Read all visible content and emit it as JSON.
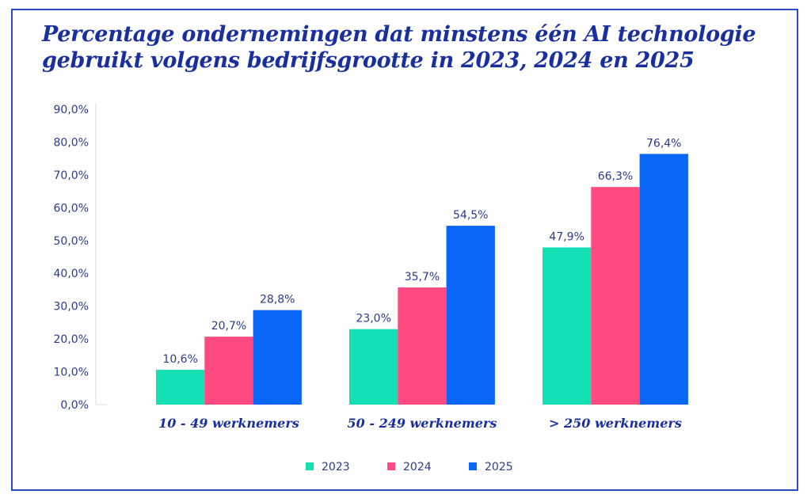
{
  "chart_data": {
    "type": "bar",
    "title_lines": [
      "Percentage ondernemingen dat minstens één AI technologie",
      "gebruikt volgens bedrijfsgrootte in 2023, 2024 en 2025"
    ],
    "categories": [
      "10 - 49 werknemers",
      "50 - 249 werknemers",
      "> 250 werknemers"
    ],
    "series": [
      {
        "name": "2023",
        "color": "#14dfb5",
        "values": [
          10.6,
          23.0,
          47.9
        ],
        "labels": [
          "10,6%",
          "23,0%",
          "47,9%"
        ]
      },
      {
        "name": "2024",
        "color": "#fd4a80",
        "values": [
          20.7,
          35.7,
          66.3
        ],
        "labels": [
          "20,7%",
          "35,7%",
          "66,3%"
        ]
      },
      {
        "name": "2025",
        "color": "#0a66f5",
        "values": [
          28.8,
          54.5,
          76.4
        ],
        "labels": [
          "28,8%",
          "54,5%",
          "76,4%"
        ]
      }
    ],
    "yticks": [
      "0,0%",
      "10,0%",
      "20,0%",
      "30,0%",
      "40,0%",
      "50,0%",
      "60,0%",
      "70,0%",
      "80,0%",
      "90,0%"
    ],
    "ylim": [
      0,
      90
    ],
    "grid": false,
    "legend_position": "bottom"
  }
}
